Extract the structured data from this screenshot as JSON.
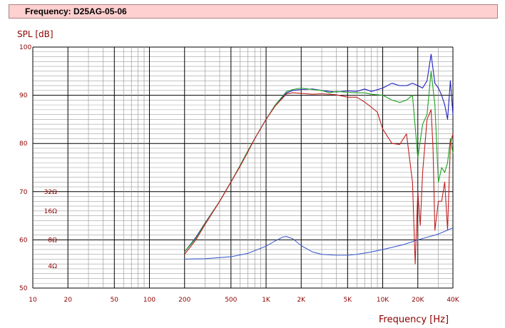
{
  "header": {
    "title": "Frequency: D25AG-05-06"
  },
  "chart_data": {
    "type": "line",
    "xscale": "log",
    "xlim": [
      10,
      40000
    ],
    "ylim": [
      50,
      100
    ],
    "grid": true,
    "ylabel": "SPL [dB]",
    "xlabel": "Frequency [Hz]",
    "x_ticks": [
      {
        "v": 10,
        "t": "10"
      },
      {
        "v": 20,
        "t": "20"
      },
      {
        "v": 50,
        "t": "50"
      },
      {
        "v": 100,
        "t": "100"
      },
      {
        "v": 200,
        "t": "200"
      },
      {
        "v": 500,
        "t": "500"
      },
      {
        "v": 1000,
        "t": "1K"
      },
      {
        "v": 2000,
        "t": "2K"
      },
      {
        "v": 5000,
        "t": "5K"
      },
      {
        "v": 10000,
        "t": "10K"
      },
      {
        "v": 20000,
        "t": "20K"
      },
      {
        "v": 40000,
        "t": "40K"
      }
    ],
    "y_ticks": [
      {
        "v": 50,
        "t": "50"
      },
      {
        "v": 60,
        "t": "60"
      },
      {
        "v": 70,
        "t": "70"
      },
      {
        "v": 80,
        "t": "80"
      },
      {
        "v": 90,
        "t": "90"
      },
      {
        "v": 100,
        "t": "100"
      }
    ],
    "impedance_labels": [
      {
        "y": 70,
        "t": "32Ω"
      },
      {
        "y": 66,
        "t": "16Ω"
      },
      {
        "y": 60,
        "t": "8Ω"
      },
      {
        "y": 54.6,
        "t": "4Ω"
      }
    ],
    "series": [
      {
        "color": "#2020c0",
        "x": [
          200,
          250,
          300,
          400,
          500,
          600,
          700,
          800,
          1000,
          1200,
          1500,
          1700,
          2000,
          2500,
          3000,
          3500,
          4000,
          5000,
          6000,
          7000,
          8000,
          10000,
          12000,
          14000,
          16000,
          18000,
          20000,
          22000,
          24000,
          26000,
          28000,
          30000,
          32000,
          34000,
          36000,
          38000,
          40000
        ],
        "y": [
          57.5,
          60.5,
          63.5,
          68,
          72,
          75.5,
          78.5,
          81,
          85,
          88,
          90.5,
          91,
          91.2,
          91.3,
          91,
          90.8,
          90.7,
          90.9,
          90.8,
          91.3,
          90.8,
          91.5,
          92.5,
          92,
          92,
          92.5,
          92,
          91.5,
          93,
          98.5,
          92.5,
          91.5,
          90,
          88,
          85,
          93,
          86
        ]
      },
      {
        "color": "#20a020",
        "x": [
          200,
          250,
          300,
          400,
          500,
          600,
          700,
          800,
          1000,
          1200,
          1500,
          1700,
          2000,
          2500,
          3000,
          3500,
          4000,
          5000,
          6000,
          7000,
          8000,
          10000,
          12000,
          14000,
          16000,
          18000,
          20000,
          22000,
          24000,
          26000,
          28000,
          30000,
          32000,
          34000,
          36000,
          38000,
          40000
        ],
        "y": [
          57.5,
          60.3,
          63.4,
          68,
          72,
          75.5,
          78.5,
          81,
          85,
          88,
          90.8,
          91.2,
          91.5,
          91.2,
          91,
          90.5,
          90.8,
          90.6,
          90.5,
          90.5,
          90.2,
          90,
          89,
          88.5,
          89,
          90,
          77,
          84,
          86,
          95,
          88,
          72,
          75,
          74,
          76,
          81,
          78
        ]
      },
      {
        "color": "#c02020",
        "x": [
          200,
          250,
          300,
          400,
          500,
          600,
          700,
          800,
          1000,
          1200,
          1500,
          1700,
          2000,
          2500,
          3000,
          3500,
          4000,
          5000,
          6000,
          7000,
          8000,
          9000,
          10000,
          12000,
          14000,
          16000,
          18000,
          19000,
          20000,
          21000,
          22000,
          24000,
          26000,
          27000,
          28000,
          30000,
          32000,
          34000,
          36000,
          38000,
          40000
        ],
        "y": [
          57,
          60,
          63.2,
          68,
          72,
          75.3,
          78.3,
          81,
          85,
          87.8,
          90.3,
          90.5,
          90.4,
          90.2,
          90.3,
          90.2,
          90.1,
          89.6,
          89.6,
          88.6,
          87.5,
          86.5,
          83,
          80,
          79.8,
          82,
          72,
          55,
          70,
          63,
          74,
          85,
          87,
          79,
          62,
          68,
          68,
          72,
          62,
          80,
          82
        ]
      },
      {
        "color": "#4060d0",
        "x": [
          200,
          300,
          500,
          700,
          1000,
          1200,
          1400,
          1500,
          1700,
          2000,
          2500,
          3000,
          4000,
          5000,
          6000,
          8000,
          10000,
          15000,
          20000,
          30000,
          40000
        ],
        "y": [
          56,
          56.1,
          56.5,
          57.2,
          58.7,
          59.8,
          60.6,
          60.7,
          60.2,
          58.8,
          57.5,
          57.0,
          56.8,
          56.8,
          57.0,
          57.5,
          58,
          59,
          60,
          61.2,
          62.5
        ]
      }
    ]
  }
}
